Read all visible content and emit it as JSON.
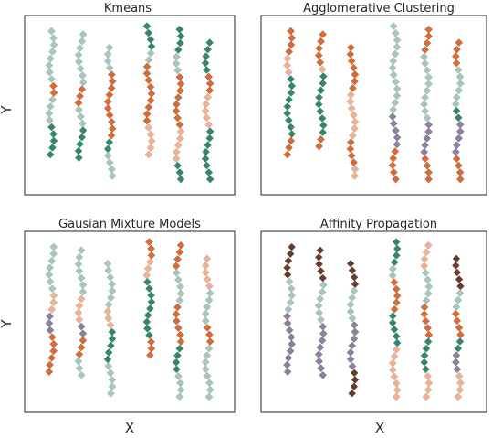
{
  "figure": {
    "xlabel": "X",
    "ylabel": "Y"
  },
  "palette": {
    "teal_light": "#a9c6bd",
    "green_dark": "#2e8b67",
    "orange": "#e06a2c",
    "peach": "#f4b08f",
    "purple": "#8f7fa3",
    "brown": "#6b3a2a",
    "edge": "#555555"
  },
  "chart_data": [
    {
      "type": "scatter",
      "title": "Kmeans",
      "marker": "diamond",
      "axes_ticks": "hidden",
      "ylim": [
        0,
        1
      ],
      "columns": [
        {
          "x": 0.1,
          "y_top": 0.95,
          "y_bottom": 0.2,
          "segments": [
            {
              "to": 0.62,
              "color": "teal_light"
            },
            {
              "to": 0.55,
              "color": "orange"
            },
            {
              "to": 0.37,
              "color": "teal_light"
            },
            {
              "to": 0.2,
              "color": "green_dark"
            }
          ]
        },
        {
          "x": 0.25,
          "y_top": 0.93,
          "y_bottom": 0.18,
          "segments": [
            {
              "to": 0.62,
              "color": "teal_light"
            },
            {
              "to": 0.48,
              "color": "orange"
            },
            {
              "to": 0.37,
              "color": "teal_light"
            },
            {
              "to": 0.18,
              "color": "green_dark"
            }
          ]
        },
        {
          "x": 0.4,
          "y_top": 0.85,
          "y_bottom": 0.07,
          "segments": [
            {
              "to": 0.7,
              "color": "teal_light"
            },
            {
              "to": 0.3,
              "color": "orange"
            },
            {
              "to": 0.2,
              "color": "green_dark"
            },
            {
              "to": 0.07,
              "color": "teal_light"
            }
          ]
        },
        {
          "x": 0.6,
          "y_top": 0.98,
          "y_bottom": 0.2,
          "segments": [
            {
              "to": 0.85,
              "color": "green_dark"
            },
            {
              "to": 0.75,
              "color": "teal_light"
            },
            {
              "to": 0.38,
              "color": "orange"
            },
            {
              "to": 0.2,
              "color": "peach"
            }
          ]
        },
        {
          "x": 0.75,
          "y_top": 0.96,
          "y_bottom": 0.05,
          "segments": [
            {
              "to": 0.8,
              "color": "green_dark"
            },
            {
              "to": 0.7,
              "color": "teal_light"
            },
            {
              "to": 0.35,
              "color": "orange"
            },
            {
              "to": 0.15,
              "color": "peach"
            },
            {
              "to": 0.05,
              "color": "green_dark"
            }
          ]
        },
        {
          "x": 0.9,
          "y_top": 0.88,
          "y_bottom": 0.05,
          "segments": [
            {
              "to": 0.68,
              "color": "green_dark"
            },
            {
              "to": 0.55,
              "color": "orange"
            },
            {
              "to": 0.35,
              "color": "peach"
            },
            {
              "to": 0.05,
              "color": "green_dark"
            }
          ]
        }
      ]
    },
    {
      "type": "scatter",
      "title": "Agglomerative Clustering",
      "marker": "diamond",
      "axes_ticks": "hidden",
      "ylim": [
        0,
        1
      ],
      "columns": [
        {
          "x": 0.1,
          "y_top": 0.95,
          "y_bottom": 0.2,
          "segments": [
            {
              "to": 0.8,
              "color": "orange"
            },
            {
              "to": 0.68,
              "color": "peach"
            },
            {
              "to": 0.32,
              "color": "green_dark"
            },
            {
              "to": 0.2,
              "color": "orange"
            }
          ]
        },
        {
          "x": 0.25,
          "y_top": 0.93,
          "y_bottom": 0.25,
          "segments": [
            {
              "to": 0.75,
              "color": "orange"
            },
            {
              "to": 0.68,
              "color": "peach"
            },
            {
              "to": 0.32,
              "color": "green_dark"
            },
            {
              "to": 0.25,
              "color": "orange"
            }
          ]
        },
        {
          "x": 0.4,
          "y_top": 0.85,
          "y_bottom": 0.07,
          "segments": [
            {
              "to": 0.6,
              "color": "orange"
            },
            {
              "to": 0.3,
              "color": "peach"
            },
            {
              "to": 0.15,
              "color": "orange"
            },
            {
              "to": 0.07,
              "color": "peach"
            }
          ]
        },
        {
          "x": 0.6,
          "y_top": 0.98,
          "y_bottom": 0.05,
          "segments": [
            {
              "to": 0.8,
              "color": "teal_light"
            },
            {
              "to": 0.45,
              "color": "teal_light"
            },
            {
              "to": 0.25,
              "color": "purple"
            },
            {
              "to": 0.05,
              "color": "orange"
            }
          ]
        },
        {
          "x": 0.75,
          "y_top": 0.96,
          "y_bottom": 0.05,
          "segments": [
            {
              "to": 0.82,
              "color": "orange"
            },
            {
              "to": 0.4,
              "color": "teal_light"
            },
            {
              "to": 0.2,
              "color": "purple"
            },
            {
              "to": 0.05,
              "color": "orange"
            }
          ]
        },
        {
          "x": 0.9,
          "y_top": 0.88,
          "y_bottom": 0.05,
          "segments": [
            {
              "to": 0.72,
              "color": "orange"
            },
            {
              "to": 0.5,
              "color": "teal_light"
            },
            {
              "to": 0.4,
              "color": "green_dark"
            },
            {
              "to": 0.2,
              "color": "purple"
            },
            {
              "to": 0.05,
              "color": "orange"
            }
          ]
        }
      ]
    },
    {
      "type": "scatter",
      "title": "Gausian Mixture Models",
      "marker": "diamond",
      "axes_ticks": "hidden",
      "ylim": [
        0,
        1
      ],
      "columns": [
        {
          "x": 0.1,
          "y_top": 0.95,
          "y_bottom": 0.2,
          "segments": [
            {
              "to": 0.7,
              "color": "teal_light"
            },
            {
              "to": 0.55,
              "color": "peach"
            },
            {
              "to": 0.45,
              "color": "purple"
            },
            {
              "to": 0.2,
              "color": "orange"
            }
          ]
        },
        {
          "x": 0.25,
          "y_top": 0.93,
          "y_bottom": 0.18,
          "segments": [
            {
              "to": 0.65,
              "color": "teal_light"
            },
            {
              "to": 0.5,
              "color": "peach"
            },
            {
              "to": 0.42,
              "color": "purple"
            },
            {
              "to": 0.3,
              "color": "orange"
            },
            {
              "to": 0.18,
              "color": "teal_light"
            }
          ]
        },
        {
          "x": 0.4,
          "y_top": 0.85,
          "y_bottom": 0.07,
          "segments": [
            {
              "to": 0.6,
              "color": "teal_light"
            },
            {
              "to": 0.45,
              "color": "peach"
            },
            {
              "to": 0.25,
              "color": "green_dark"
            },
            {
              "to": 0.07,
              "color": "teal_light"
            }
          ]
        },
        {
          "x": 0.6,
          "y_top": 0.98,
          "y_bottom": 0.3,
          "segments": [
            {
              "to": 0.88,
              "color": "orange"
            },
            {
              "to": 0.78,
              "color": "peach"
            },
            {
              "to": 0.4,
              "color": "green_dark"
            },
            {
              "to": 0.3,
              "color": "orange"
            }
          ]
        },
        {
          "x": 0.75,
          "y_top": 0.96,
          "y_bottom": 0.05,
          "segments": [
            {
              "to": 0.8,
              "color": "orange"
            },
            {
              "to": 0.6,
              "color": "teal_light"
            },
            {
              "to": 0.35,
              "color": "orange"
            },
            {
              "to": 0.2,
              "color": "green_dark"
            },
            {
              "to": 0.05,
              "color": "teal_light"
            }
          ]
        },
        {
          "x": 0.9,
          "y_top": 0.88,
          "y_bottom": 0.05,
          "segments": [
            {
              "to": 0.7,
              "color": "peach"
            },
            {
              "to": 0.5,
              "color": "teal_light"
            },
            {
              "to": 0.38,
              "color": "orange"
            },
            {
              "to": 0.05,
              "color": "teal_light"
            }
          ]
        }
      ]
    },
    {
      "type": "scatter",
      "title": "Affinity Propagation",
      "marker": "diamond",
      "axes_ticks": "hidden",
      "ylim": [
        0,
        1
      ],
      "columns": [
        {
          "x": 0.1,
          "y_top": 0.95,
          "y_bottom": 0.2,
          "segments": [
            {
              "to": 0.75,
              "color": "brown"
            },
            {
              "to": 0.55,
              "color": "teal_light"
            },
            {
              "to": 0.2,
              "color": "purple"
            }
          ]
        },
        {
          "x": 0.25,
          "y_top": 0.93,
          "y_bottom": 0.18,
          "segments": [
            {
              "to": 0.75,
              "color": "brown"
            },
            {
              "to": 0.5,
              "color": "teal_light"
            },
            {
              "to": 0.18,
              "color": "purple"
            }
          ]
        },
        {
          "x": 0.4,
          "y_top": 0.85,
          "y_bottom": 0.07,
          "segments": [
            {
              "to": 0.7,
              "color": "brown"
            },
            {
              "to": 0.5,
              "color": "teal_light"
            },
            {
              "to": 0.2,
              "color": "purple"
            },
            {
              "to": 0.07,
              "color": "brown"
            }
          ]
        },
        {
          "x": 0.6,
          "y_top": 0.98,
          "y_bottom": 0.05,
          "segments": [
            {
              "to": 0.85,
              "color": "green_dark"
            },
            {
              "to": 0.75,
              "color": "teal_light"
            },
            {
              "to": 0.55,
              "color": "orange"
            },
            {
              "to": 0.35,
              "color": "green_dark"
            },
            {
              "to": 0.05,
              "color": "peach"
            }
          ]
        },
        {
          "x": 0.75,
          "y_top": 0.96,
          "y_bottom": 0.05,
          "segments": [
            {
              "to": 0.8,
              "color": "peach"
            },
            {
              "to": 0.6,
              "color": "teal_light"
            },
            {
              "to": 0.4,
              "color": "orange"
            },
            {
              "to": 0.2,
              "color": "green_dark"
            },
            {
              "to": 0.05,
              "color": "peach"
            }
          ]
        },
        {
          "x": 0.9,
          "y_top": 0.88,
          "y_bottom": 0.05,
          "segments": [
            {
              "to": 0.7,
              "color": "brown"
            },
            {
              "to": 0.55,
              "color": "teal_light"
            },
            {
              "to": 0.4,
              "color": "orange"
            },
            {
              "to": 0.3,
              "color": "green_dark"
            },
            {
              "to": 0.2,
              "color": "purple"
            },
            {
              "to": 0.05,
              "color": "peach"
            }
          ]
        }
      ]
    }
  ]
}
